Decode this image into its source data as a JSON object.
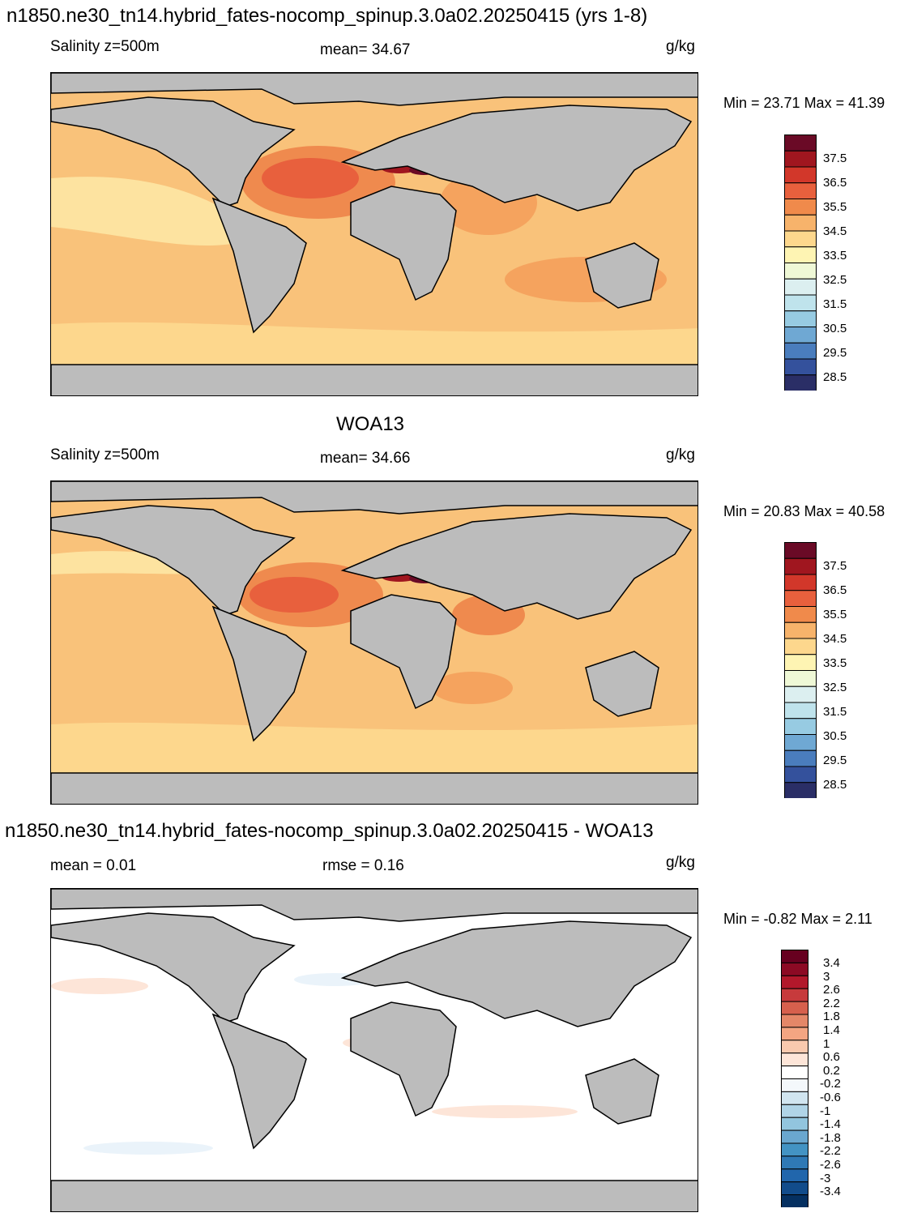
{
  "panels": [
    {
      "title": "n1850.ne30_tn14.hybrid_fates-nocomp_spinup.3.0a02.20250415 (yrs 1-8)",
      "left_label": "Salinity z=500m",
      "center_label": "mean=  34.67",
      "units": "g/kg",
      "minmax": "Min =  23.71 Max =  41.39"
    },
    {
      "title": "WOA13",
      "left_label": "Salinity z=500m",
      "center_label": "mean=  34.66",
      "units": "g/kg",
      "minmax": "Min =  20.83 Max =  40.58"
    },
    {
      "title": "n1850.ne30_tn14.hybrid_fates-nocomp_spinup.3.0a02.20250415 - WOA13",
      "left_label": "mean =   0.01",
      "center_label": "rmse =   0.16",
      "units": "g/kg",
      "minmax": "Min =  -0.82 Max =   2.11"
    }
  ],
  "colorbars": {
    "salinity": {
      "ticks": [
        "37.5",
        "36.5",
        "35.5",
        "34.5",
        "33.5",
        "32.5",
        "31.5",
        "30.5",
        "29.5",
        "28.5"
      ],
      "colors": [
        "#6a0a26",
        "#a0161f",
        "#d2372a",
        "#e8603d",
        "#f08a4b",
        "#f7b36b",
        "#fdd78d",
        "#fef4b3",
        "#eff8d6",
        "#dceff0",
        "#bfe3ec",
        "#97cbe2",
        "#6fa8d3",
        "#4a7dbd",
        "#34519c",
        "#2a2e66"
      ]
    },
    "difference": {
      "ticks": [
        "3.4",
        "3",
        "2.6",
        "2.2",
        "1.8",
        "1.4",
        "1",
        "0.6",
        "0.2",
        "-0.2",
        "-0.6",
        "-1",
        "-1.4",
        "-1.8",
        "-2.2",
        "-2.6",
        "-3",
        "-3.4"
      ],
      "colors": [
        "#67001f",
        "#8c0a24",
        "#b2182b",
        "#c73a3c",
        "#d6604d",
        "#e48768",
        "#f4a582",
        "#f9c9ae",
        "#fde5d8",
        "#ffffff",
        "#f4f8fb",
        "#d1e5f0",
        "#b0d4e7",
        "#92c5de",
        "#6aa7cf",
        "#4393c3",
        "#2f79b5",
        "#2166ac",
        "#124c8b",
        "#053061"
      ]
    }
  },
  "colors": {
    "land": "#bcbcbc",
    "coast": "#000000"
  }
}
